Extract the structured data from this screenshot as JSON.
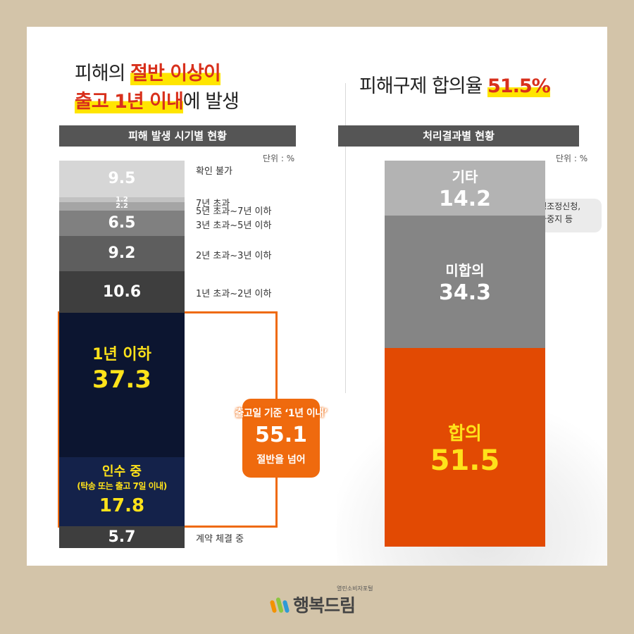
{
  "left_title": {
    "line1_plain": "피해의 ",
    "line1_highlight": "절반 이상이",
    "line2_highlight": "출고 1년 이내",
    "line2_plain": "에 발생"
  },
  "right_title": {
    "plain": "피해구제 합의율 ",
    "highlight": "51.5%"
  },
  "unit_label": "단위 : %",
  "left_chart": {
    "header": "피해 발생 시기별 현황",
    "callout": {
      "title": "출고일 기준 ‘1년 이내’",
      "value": "55.1",
      "caption": "절반을 넘어"
    }
  },
  "chart_data": [
    {
      "type": "bar",
      "title": "피해 발생 시기별 현황",
      "unit": "%",
      "segments": [
        {
          "label": "확인 불가",
          "value": 9.5,
          "value_text": "9.5",
          "color": "#d6d6d6"
        },
        {
          "label": "7년 초과",
          "value": 1.2,
          "value_text": "1.2",
          "color": "#c2c2c2"
        },
        {
          "label": "5년 초과~7년 이하",
          "value": 2.2,
          "value_text": "2.2",
          "color": "#a5a5a5"
        },
        {
          "label": "3년 초과~5년 이하",
          "value": 6.5,
          "value_text": "6.5",
          "color": "#808080"
        },
        {
          "label": "2년 초과~3년 이하",
          "value": 9.2,
          "value_text": "9.2",
          "color": "#5e5e5e"
        },
        {
          "label": "1년 초과~2년 이하",
          "value": 10.6,
          "value_text": "10.6",
          "color": "#3e3e3e"
        },
        {
          "label": "1년 이하",
          "value": 37.3,
          "value_text": "37.3",
          "color": "#0c1530"
        },
        {
          "label": "인수 중",
          "sublabel": "(탁송 또는 출고 7일 이내)",
          "value": 17.8,
          "value_text": "17.8",
          "color": "#14224a"
        },
        {
          "label": "계약 체결 중",
          "value": 5.7,
          "value_text": "5.7",
          "color": "#3e3e3e"
        }
      ]
    },
    {
      "type": "bar",
      "title": "처리결과별 현황",
      "unit": "%",
      "segments": [
        {
          "label": "기타",
          "value": 14.2,
          "value_text": "14.2",
          "color": "#b3b3b3"
        },
        {
          "label": "미합의",
          "value": 34.3,
          "value_text": "34.3",
          "color": "#858585"
        },
        {
          "label": "합의",
          "value": 51.5,
          "value_text": "51.5",
          "color": "#e24a03"
        }
      ]
    }
  ],
  "right_chart": {
    "header": "처리결과별 현황",
    "note_line1": "분쟁조정신청,",
    "note_line2": "취하중지 등"
  },
  "logo": {
    "tagline": "열린소비자포털",
    "name": "행복드림"
  },
  "colors": {
    "orange_outline": "#ef6a0e",
    "highlight_yellow": "#ffe500",
    "value_yellow": "#ffe21a"
  }
}
